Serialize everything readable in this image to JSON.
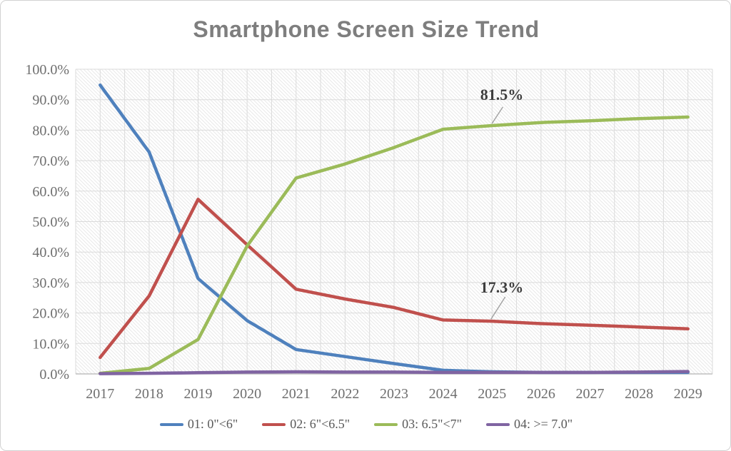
{
  "chart_data": {
    "type": "line",
    "title": "Smartphone Screen Size Trend",
    "xlabel": "",
    "ylabel": "",
    "x_categories": [
      "2017",
      "2018",
      "2019",
      "2020",
      "2021",
      "2022",
      "2023",
      "2024",
      "2025",
      "2026",
      "2027",
      "2028",
      "2029"
    ],
    "ylim": [
      0,
      100
    ],
    "ytick_step": 10,
    "ytick_labels": [
      "0.0%",
      "10.0%",
      "20.0%",
      "30.0%",
      "40.0%",
      "50.0%",
      "60.0%",
      "70.0%",
      "80.0%",
      "90.0%",
      "100.0%"
    ],
    "grid": true,
    "plot_pattern": "light-diagonal-hatch",
    "legend_position": "bottom",
    "series": [
      {
        "name": "01: 0\"<6\"",
        "color": "#4F81BD",
        "values": [
          94.8,
          72.8,
          31.3,
          17.5,
          8.0,
          5.7,
          3.4,
          1.2,
          0.7,
          0.5,
          0.5,
          0.5,
          0.5
        ]
      },
      {
        "name": "02: 6\"<6.5\"",
        "color": "#C0504D",
        "values": [
          5.4,
          25.6,
          57.3,
          42.4,
          27.8,
          24.6,
          21.8,
          17.7,
          17.3,
          16.5,
          16.0,
          15.4,
          14.8
        ]
      },
      {
        "name": "03: 6.5\"<7\"",
        "color": "#9BBB59",
        "values": [
          0.2,
          1.8,
          11.3,
          42.0,
          64.3,
          68.9,
          74.3,
          80.3,
          81.5,
          82.5,
          83.1,
          83.8,
          84.3
        ]
      },
      {
        "name": "04: >= 7.0\"",
        "color": "#8064A2",
        "values": [
          0.1,
          0.2,
          0.4,
          0.6,
          0.7,
          0.6,
          0.6,
          0.5,
          0.5,
          0.5,
          0.5,
          0.6,
          0.8
        ]
      }
    ],
    "annotations": [
      {
        "text": "81.5%",
        "label_x": 2025.2,
        "label_y": 91.8,
        "leader_from": [
          2025.22,
          87.6
        ],
        "leader_to": [
          2025.0,
          82.2
        ]
      },
      {
        "text": "17.3%",
        "label_x": 2025.2,
        "label_y": 28.6,
        "leader_from": [
          2025.27,
          25.3
        ],
        "leader_to": [
          2024.98,
          18.0
        ]
      }
    ]
  }
}
